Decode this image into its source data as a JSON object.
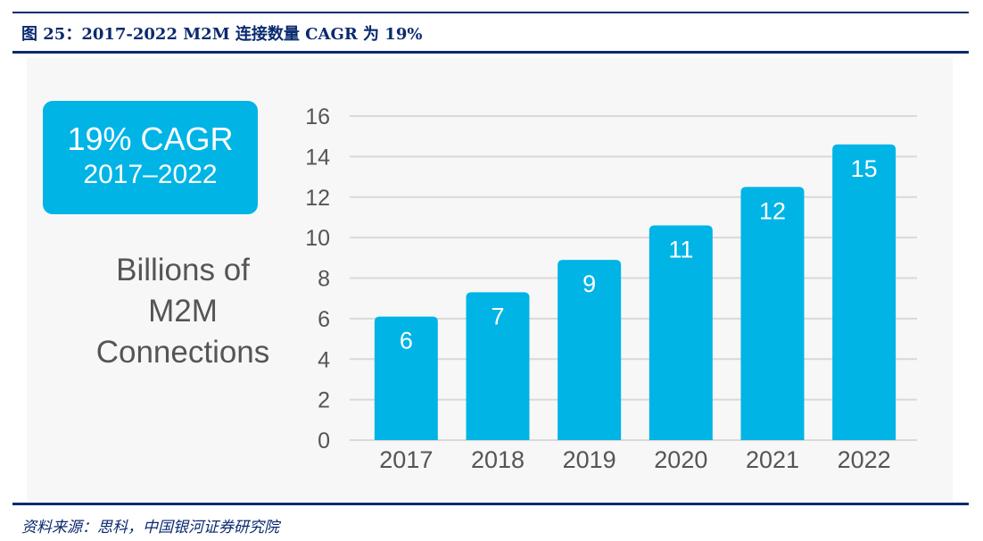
{
  "figure_title": "图 25：2017-2022 M2M 连接数量 CAGR 为 19%",
  "source": "资料来源：思科，中国银河证券研究院",
  "cagr_box": {
    "main": "19% CAGR",
    "period": "2017–2022"
  },
  "colors": {
    "bar": "#00b4e6",
    "grid": "#d9d9d9",
    "title": "#0a2a6e",
    "text": "#555555"
  },
  "chart_data": {
    "type": "bar",
    "ylabel_lines": [
      "Billions of",
      "M2M",
      "Connections"
    ],
    "categories": [
      "2017",
      "2018",
      "2019",
      "2020",
      "2021",
      "2022"
    ],
    "values": [
      6.1,
      7.3,
      8.9,
      10.6,
      12.5,
      14.6
    ],
    "data_labels": [
      "6",
      "7",
      "9",
      "11",
      "12",
      "15"
    ],
    "y_ticks": [
      0,
      2,
      4,
      6,
      8,
      10,
      12,
      14,
      16
    ],
    "ylim": [
      0,
      16
    ],
    "grid": true
  }
}
